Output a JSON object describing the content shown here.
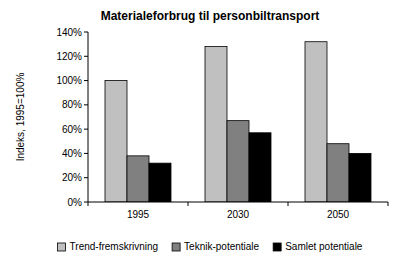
{
  "chart_data": {
    "type": "bar",
    "title": "Materialeforbrug til personbiltransport",
    "y_label": "Indeks, 1995=100%",
    "categories": [
      "1995",
      "2030",
      "2050"
    ],
    "series": [
      {
        "name": "Trend-fremskrivning",
        "color": "#c0c0c0",
        "values": [
          100,
          128,
          132
        ]
      },
      {
        "name": "Teknik-potentiale",
        "color": "#808080",
        "values": [
          38,
          67,
          48
        ]
      },
      {
        "name": "Samlet potentiale",
        "color": "#000000",
        "values": [
          32,
          57,
          40
        ]
      }
    ],
    "ylim": [
      0,
      140
    ],
    "yticks": [
      {
        "value": 0,
        "label": "0%"
      },
      {
        "value": 20,
        "label": "20%"
      },
      {
        "value": 40,
        "label": "40%"
      },
      {
        "value": 60,
        "label": "60%"
      },
      {
        "value": 80,
        "label": "80%"
      },
      {
        "value": 100,
        "label": "100%"
      },
      {
        "value": 120,
        "label": "120%"
      },
      {
        "value": 140,
        "label": "140%"
      }
    ],
    "grid": false,
    "legend": "bottom"
  }
}
